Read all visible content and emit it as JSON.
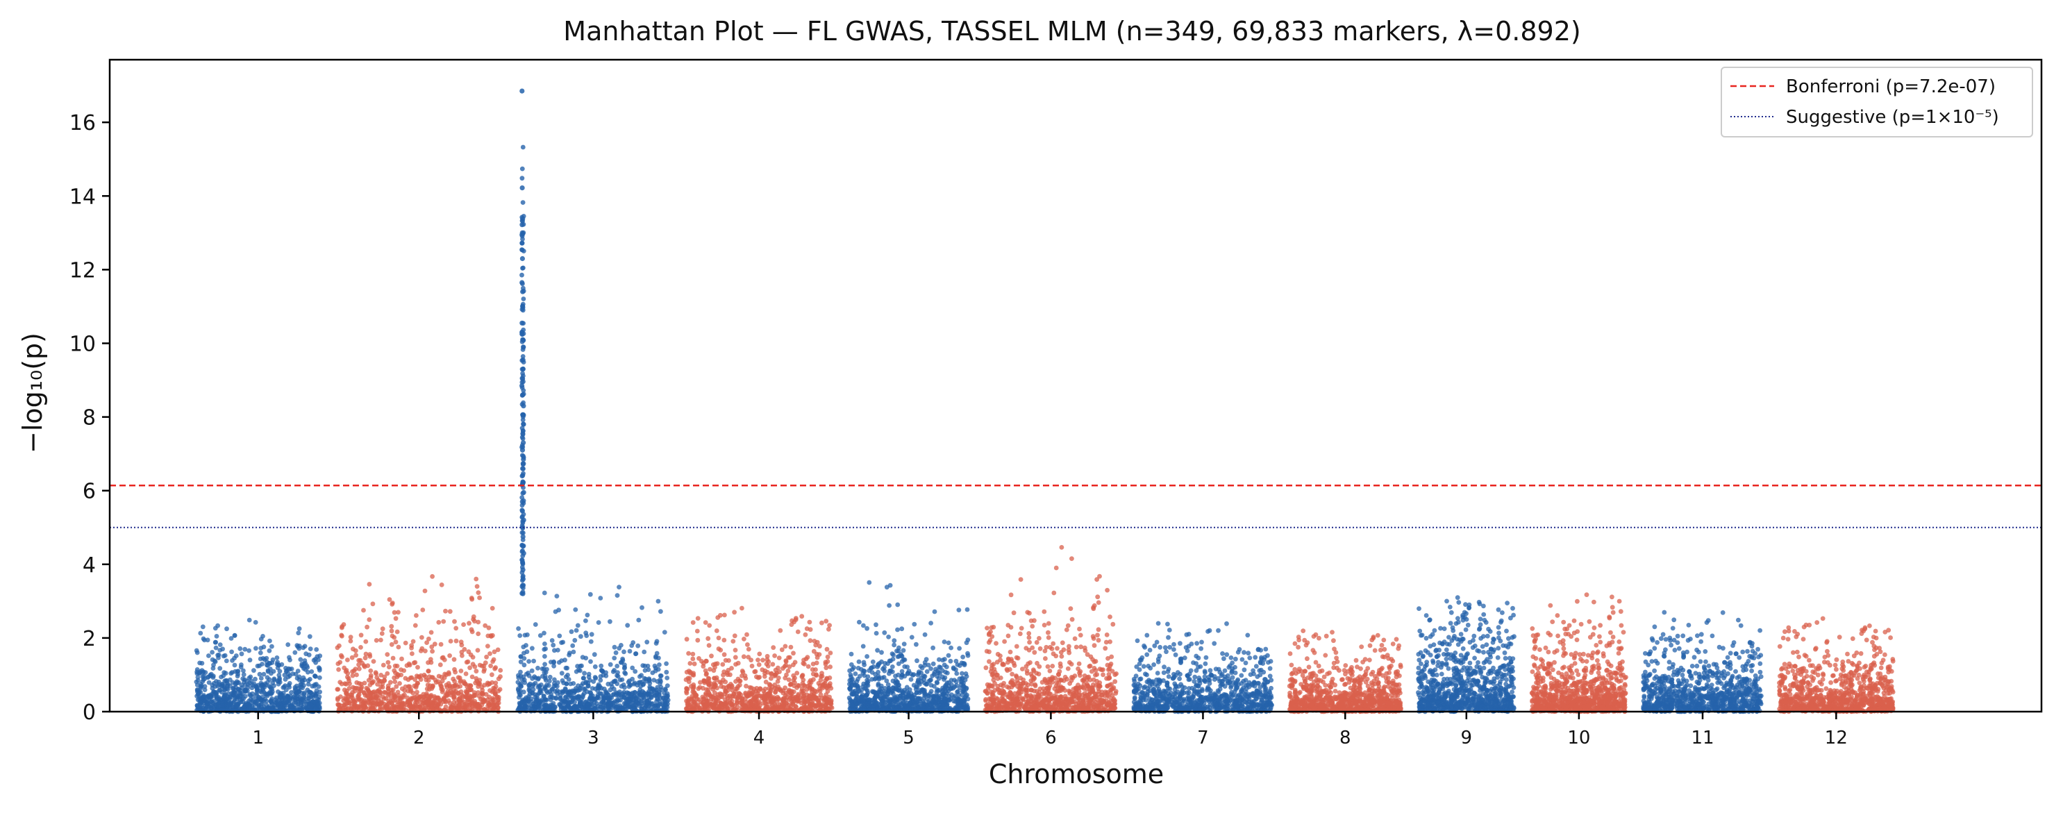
{
  "chart_data": {
    "type": "scatter",
    "title": "Manhattan Plot — FL GWAS, TASSEL MLM (n=349, 69,833 markers, λ=0.892)",
    "xlabel": "Chromosome",
    "ylabel": "−log₁₀(p)",
    "ylim": [
      0,
      17.7
    ],
    "yticks": [
      0,
      2,
      4,
      6,
      8,
      10,
      12,
      14,
      16
    ],
    "grid": false,
    "legend_position": "top-right",
    "colors": {
      "odd": "#2563ab",
      "even": "#d9604c",
      "bonferroni": "#e8251f",
      "suggestive": "#1f2a8c"
    },
    "chromosomes": [
      {
        "label": "1",
        "start": 0,
        "end": 250,
        "base": 1.0,
        "peak": 2.5
      },
      {
        "label": "2",
        "start": 285,
        "end": 615,
        "base": 1.2,
        "peak": 3.7
      },
      {
        "label": "3",
        "start": 650,
        "end": 955,
        "base": 1.0,
        "peak": 3.4
      },
      {
        "label": "4",
        "start": 990,
        "end": 1285,
        "base": 1.0,
        "peak": 2.9
      },
      {
        "label": "5",
        "start": 1320,
        "end": 1560,
        "base": 1.0,
        "peak": 4.2
      },
      {
        "label": "6",
        "start": 1595,
        "end": 1860,
        "base": 1.1,
        "peak": 4.5
      },
      {
        "label": "7",
        "start": 1895,
        "end": 2175,
        "base": 0.9,
        "peak": 2.4
      },
      {
        "label": "8",
        "start": 2210,
        "end": 2435,
        "base": 0.8,
        "peak": 2.2
      },
      {
        "label": "9",
        "start": 2470,
        "end": 2665,
        "base": 1.4,
        "peak": 3.1
      },
      {
        "label": "10",
        "start": 2700,
        "end": 2890,
        "base": 1.0,
        "peak": 3.2
      },
      {
        "label": "11",
        "start": 2925,
        "end": 3165,
        "base": 1.0,
        "peak": 2.7
      },
      {
        "label": "12",
        "start": 3200,
        "end": 3430,
        "base": 0.9,
        "peak": 2.6
      }
    ],
    "x_range": [
      -175,
      3730
    ],
    "peak_locus": {
      "chromosome": "3",
      "position": 660,
      "top_values": [
        16.85,
        14.22,
        13.38,
        13.22,
        12.95,
        12.72,
        12.3,
        11.65,
        11.4,
        11.0,
        10.55,
        10.3,
        10.1,
        9.9,
        9.55,
        9.3,
        9.05,
        8.85,
        8.6,
        8.3,
        8.05,
        7.8,
        7.55,
        7.3,
        7.1,
        6.85,
        6.6,
        6.4,
        6.2,
        5.95,
        5.7,
        5.45,
        5.2,
        5.0,
        4.75,
        4.5,
        4.3,
        4.05,
        3.85,
        3.6,
        3.4,
        3.2
      ]
    },
    "thresholds": [
      {
        "name": "Bonferroni (p=7.2e-07)",
        "value": 6.14,
        "style": "dashed",
        "color": "#e8251f"
      },
      {
        "name": "Suggestive (p=1×10⁻⁵)",
        "value": 5.0,
        "style": "dotted",
        "color": "#1f2a8c"
      }
    ]
  }
}
